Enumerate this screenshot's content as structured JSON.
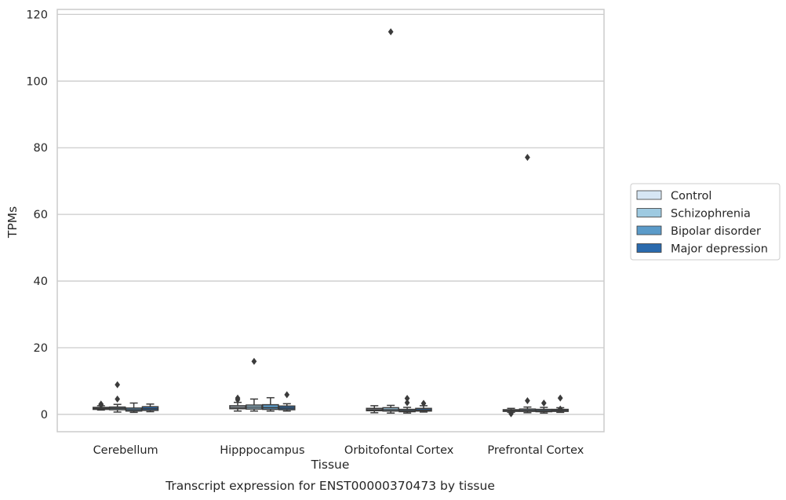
{
  "chart_data": {
    "type": "box",
    "title": "",
    "caption": "Transcript expression for ENST00000370473 by tissue",
    "xlabel": "Tissue",
    "ylabel": "TPMs",
    "ylim": [
      -5.2,
      121.5
    ],
    "yticks": [
      0,
      20,
      40,
      60,
      80,
      100,
      120
    ],
    "grid": "horizontal",
    "legend_placement": "right",
    "categories": [
      "Cerebellum",
      "Hipppocampus",
      "Orbitofontal Cortex",
      "Prefrontal Cortex"
    ],
    "series": [
      {
        "name": "Control",
        "color": "#d6e6f4",
        "boxes": [
          {
            "whislo": 1.3,
            "q1": 1.5,
            "med": 1.8,
            "q3": 2.1,
            "whishi": 2.6,
            "fliers": [
              2.8,
              3.1
            ]
          },
          {
            "whislo": 1.0,
            "q1": 1.7,
            "med": 2.1,
            "q3": 2.6,
            "whishi": 3.6,
            "fliers": [
              4.4,
              4.9
            ]
          },
          {
            "whislo": 0.5,
            "q1": 1.1,
            "med": 1.4,
            "q3": 1.8,
            "whishi": 2.6,
            "fliers": []
          },
          {
            "whislo": 0.6,
            "q1": 0.9,
            "med": 1.1,
            "q3": 1.4,
            "whishi": 1.8,
            "fliers": [
              0.2
            ]
          }
        ]
      },
      {
        "name": "Schizophrenia",
        "color": "#9ecae1",
        "boxes": [
          {
            "whislo": 0.7,
            "q1": 1.4,
            "med": 1.8,
            "q3": 2.2,
            "whishi": 3.0,
            "fliers": [
              4.6,
              8.9
            ]
          },
          {
            "whislo": 1.0,
            "q1": 1.6,
            "med": 2.2,
            "q3": 2.8,
            "whishi": 4.6,
            "fliers": [
              15.9
            ]
          },
          {
            "whislo": 0.4,
            "q1": 1.0,
            "med": 1.4,
            "q3": 2.0,
            "whishi": 2.7,
            "fliers": [
              114.8
            ]
          },
          {
            "whislo": 0.5,
            "q1": 0.9,
            "med": 1.2,
            "q3": 1.6,
            "whishi": 2.2,
            "fliers": [
              4.1,
              77.1
            ]
          }
        ]
      },
      {
        "name": "Bipolar disorder",
        "color": "#5b9bc9",
        "boxes": [
          {
            "whislo": 0.6,
            "q1": 1.0,
            "med": 1.4,
            "q3": 1.9,
            "whishi": 3.4,
            "fliers": []
          },
          {
            "whislo": 1.0,
            "q1": 1.5,
            "med": 2.0,
            "q3": 2.9,
            "whishi": 5.0,
            "fliers": []
          },
          {
            "whislo": 0.4,
            "q1": 0.8,
            "med": 1.1,
            "q3": 1.5,
            "whishi": 2.1,
            "fliers": [
              3.5,
              4.8
            ]
          },
          {
            "whislo": 0.4,
            "q1": 0.8,
            "med": 1.1,
            "q3": 1.5,
            "whishi": 2.1,
            "fliers": [
              3.4
            ]
          }
        ]
      },
      {
        "name": "Major depression",
        "color": "#2a6aad",
        "boxes": [
          {
            "whislo": 0.8,
            "q1": 1.2,
            "med": 1.7,
            "q3": 2.3,
            "whishi": 3.1,
            "fliers": []
          },
          {
            "whislo": 1.0,
            "q1": 1.4,
            "med": 1.9,
            "q3": 2.5,
            "whishi": 3.2,
            "fliers": [
              5.9
            ]
          },
          {
            "whislo": 0.7,
            "q1": 1.0,
            "med": 1.3,
            "q3": 1.8,
            "whishi": 2.6,
            "fliers": [
              3.3
            ]
          },
          {
            "whislo": 0.6,
            "q1": 0.9,
            "med": 1.2,
            "q3": 1.5,
            "whishi": 2.0,
            "fliers": [
              1.6,
              4.9
            ]
          }
        ]
      }
    ]
  }
}
